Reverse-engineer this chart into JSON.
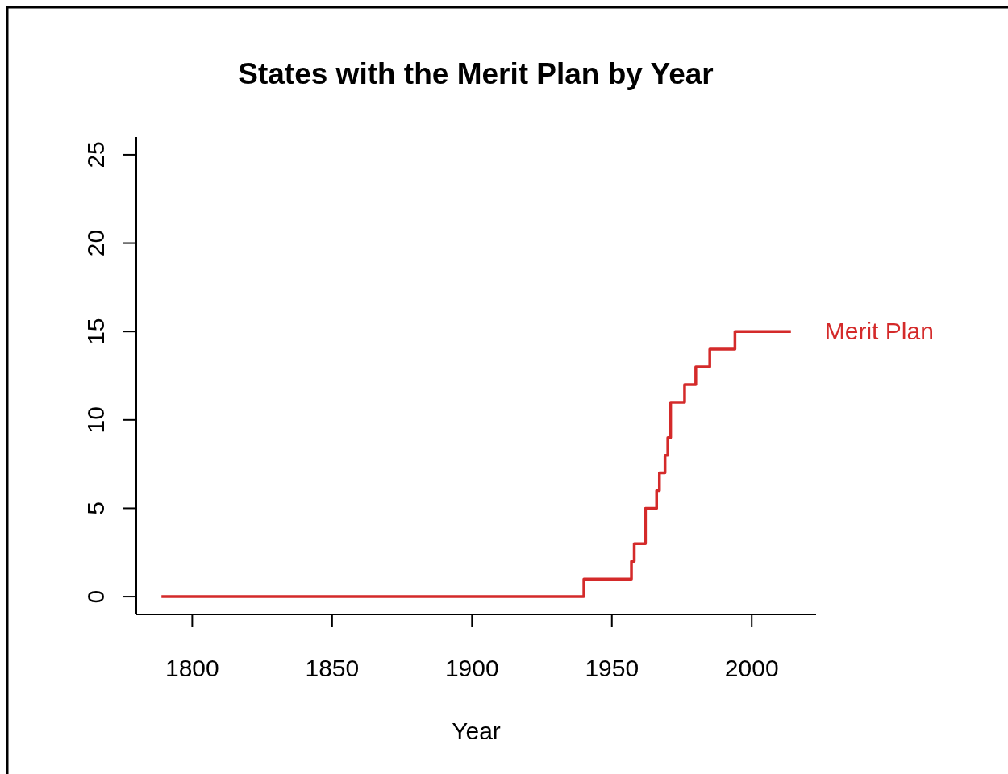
{
  "chart_data": {
    "type": "step",
    "title": "States with the Merit Plan by Year",
    "xlabel": "Year",
    "xlim": [
      1780,
      2023
    ],
    "xticks": [
      1800,
      1850,
      1900,
      1950,
      2000
    ],
    "ylim": [
      -1,
      26
    ],
    "yticks": [
      0,
      5,
      10,
      15,
      20,
      25
    ],
    "x": [
      1789,
      1940,
      1957,
      1958,
      1962,
      1966,
      1967,
      1969,
      1970,
      1971,
      1976,
      1980,
      1985,
      1994,
      2014
    ],
    "series": [
      {
        "name": "Merit Plan",
        "color": "#d42a2a",
        "values": [
          0,
          1,
          2,
          3,
          5,
          6,
          7,
          8,
          9,
          11,
          12,
          13,
          14,
          15,
          15
        ]
      }
    ],
    "grid": false,
    "legend": false
  }
}
